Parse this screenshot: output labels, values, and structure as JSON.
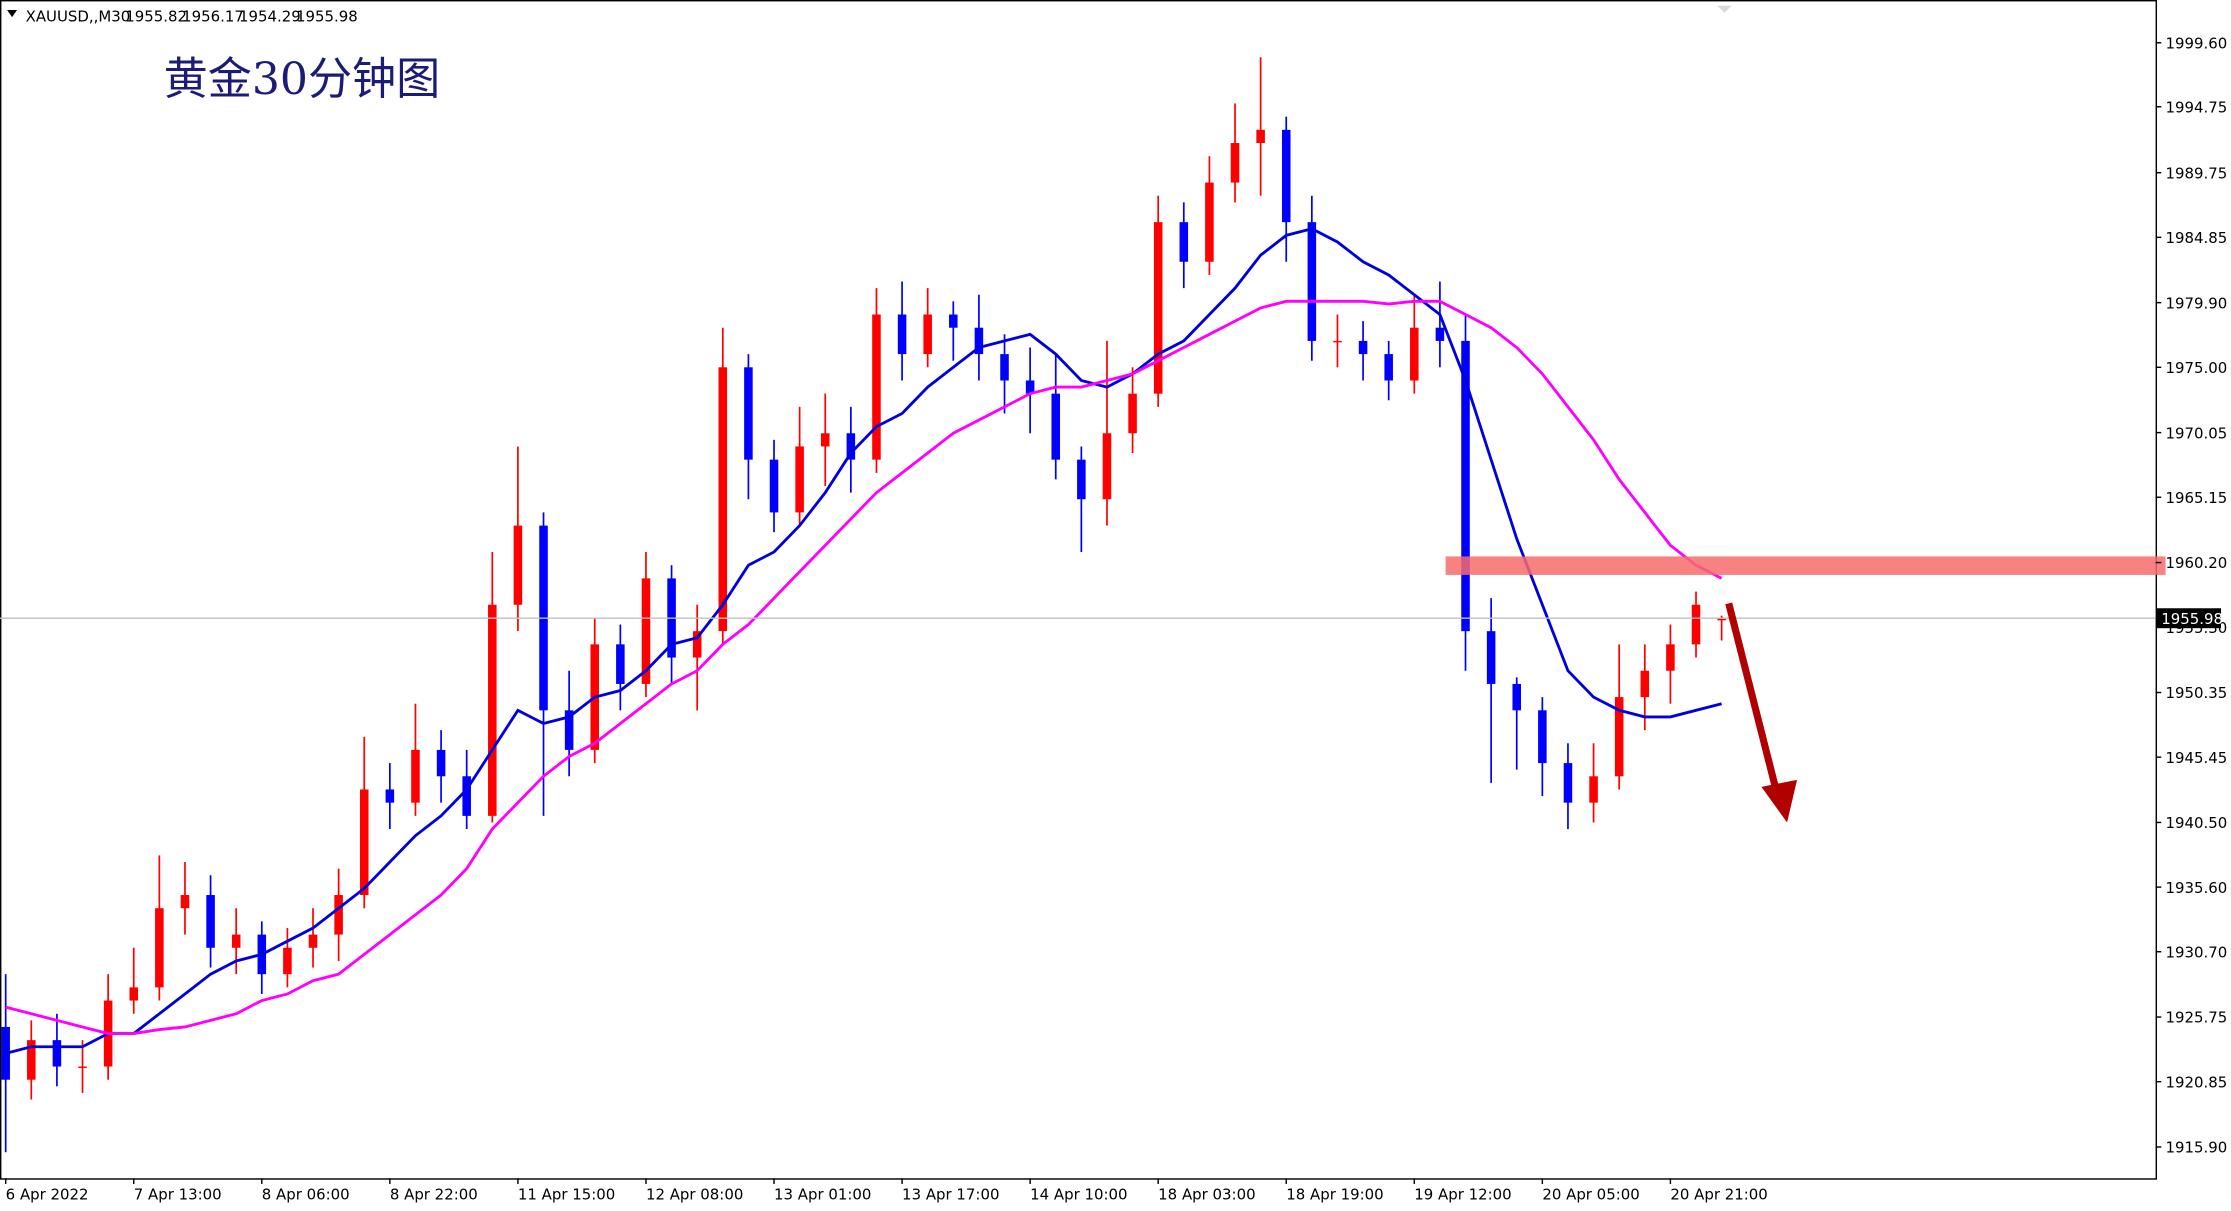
{
  "chart_data": {
    "type": "candlestick",
    "symbol": "XAUUSD,,M30",
    "title": "黄金30分钟图",
    "categories": [
      "6 Apr 2022",
      null,
      null,
      null,
      null,
      "7 Apr 13:00",
      null,
      null,
      null,
      null,
      "8 Apr 06:00",
      null,
      null,
      null,
      null,
      "8 Apr 22:00",
      null,
      null,
      null,
      null,
      "11 Apr 15:00",
      null,
      null,
      null,
      null,
      "12 Apr 08:00",
      null,
      null,
      null,
      null,
      "13 Apr 01:00",
      null,
      null,
      null,
      null,
      "13 Apr 17:00",
      null,
      null,
      null,
      null,
      "14 Apr 10:00",
      null,
      null,
      null,
      null,
      "18 Apr 03:00",
      null,
      null,
      null,
      null,
      "18 Apr 19:00",
      null,
      null,
      null,
      null,
      "19 Apr 12:00",
      null,
      null,
      null,
      null,
      "20 Apr 05:00",
      null,
      null,
      null,
      null,
      "20 Apr 21:00",
      null,
      null
    ],
    "open": [
      1925,
      1921,
      1924,
      1922,
      1922,
      1927,
      1928,
      1934,
      1935,
      1931,
      1932,
      1929,
      1931,
      1932,
      1935,
      1943,
      1942,
      1946,
      1944,
      1941,
      1957,
      1963,
      1949,
      1946,
      1954,
      1951,
      1959,
      1953,
      1955,
      1975,
      1968,
      1964,
      1969,
      1970,
      1968,
      1979,
      1976,
      1979,
      1978,
      1976,
      1974,
      1973,
      1968,
      1965,
      1970,
      1973,
      1986,
      1983,
      1989,
      1992,
      1993,
      1986,
      1977,
      1977,
      1976,
      1974,
      1978,
      1977,
      1955,
      1951,
      1949,
      1945,
      1942,
      1944,
      1950,
      1952,
      1954,
      1955.82
    ],
    "high": [
      1929,
      1925.5,
      1926,
      1924,
      1929,
      1931,
      1938,
      1937.5,
      1936.5,
      1934,
      1933,
      1932.5,
      1934,
      1937,
      1947,
      1945,
      1949.5,
      1947.5,
      1946,
      1961,
      1969,
      1964,
      1952,
      1956,
      1955.5,
      1961,
      1960,
      1957,
      1978,
      1976,
      1969.5,
      1972,
      1973,
      1972,
      1981,
      1981.5,
      1981,
      1980,
      1980.5,
      1977.5,
      1976.5,
      1976,
      1969,
      1977,
      1975,
      1988,
      1987.5,
      1991,
      1995,
      1998.5,
      1994,
      1988,
      1979,
      1978.5,
      1977,
      1980.5,
      1981.5,
      1979,
      1957.5,
      1951.5,
      1950,
      1946.5,
      1946.5,
      1954,
      1954,
      1955.5,
      1958,
      1956.17
    ],
    "low": [
      1915.5,
      1919.5,
      1920.5,
      1920,
      1921,
      1926,
      1927,
      1932,
      1929.5,
      1929,
      1927.5,
      1928,
      1929.5,
      1930,
      1934,
      1940,
      1941,
      1942,
      1940,
      1940.5,
      1955,
      1941,
      1944,
      1945,
      1949,
      1950,
      1951,
      1949,
      1954,
      1965,
      1962.5,
      1963,
      1966,
      1965.5,
      1967,
      1974,
      1975,
      1975.5,
      1974,
      1971.5,
      1970,
      1966.5,
      1961,
      1963,
      1968.5,
      1972,
      1981,
      1982,
      1987.5,
      1988,
      1983,
      1975.5,
      1975,
      1974,
      1972.5,
      1973,
      1975,
      1952,
      1943.5,
      1944.5,
      1942.5,
      1940,
      1940.5,
      1943,
      1947.5,
      1949.5,
      1953,
      1954.29
    ],
    "close": [
      1921,
      1924,
      1922,
      1922,
      1927,
      1928,
      1934,
      1935,
      1931,
      1932,
      1929,
      1931,
      1932,
      1935,
      1943,
      1942,
      1946,
      1944,
      1941,
      1957,
      1963,
      1949,
      1946,
      1954,
      1951,
      1959,
      1953,
      1955,
      1975,
      1968,
      1964,
      1969,
      1970,
      1968,
      1979,
      1976,
      1979,
      1978,
      1976,
      1974,
      1973,
      1968,
      1965,
      1970,
      1973,
      1986,
      1983,
      1989,
      1992,
      1993,
      1986,
      1977,
      1977,
      1976,
      1974,
      1978,
      1977,
      1955,
      1951,
      1949,
      1945,
      1942,
      1944,
      1950,
      1952,
      1954,
      1957,
      1955.98
    ],
    "up_color": "#ff0000",
    "down_color": "#0000ff",
    "series": [
      {
        "color": "#0000dd",
        "values": [
          1923,
          1923.5,
          1923.5,
          1923.5,
          1924.5,
          1924.5,
          1926,
          1927.5,
          1929,
          1930,
          1930.5,
          1931.5,
          1932.5,
          1934,
          1935.5,
          1937.5,
          1939.5,
          1941,
          1943,
          1946,
          1949,
          1948,
          1948.5,
          1950,
          1950.5,
          1952,
          1954,
          1954.5,
          1957,
          1960,
          1961,
          1963,
          1965.5,
          1968.5,
          1970.5,
          1971.5,
          1973.5,
          1975,
          1976.5,
          1977,
          1977.5,
          1976,
          1974,
          1973.5,
          1974.5,
          1976,
          1977,
          1979,
          1981,
          1983.5,
          1985,
          1985.5,
          1984.5,
          1983,
          1982,
          1980.5,
          1979,
          1974,
          1968,
          1962,
          1957,
          1952,
          1950,
          1949,
          1948.5,
          1948.5,
          1949,
          1949.5
        ]
      },
      {
        "color": "#ff00ff",
        "values": [
          1926.5,
          1926,
          1925.5,
          1925,
          1924.5,
          1924.5,
          1924.8,
          1925,
          1925.5,
          1926,
          1927,
          1927.5,
          1928.5,
          1929,
          1930.5,
          1932,
          1933.5,
          1935,
          1937,
          1940,
          1942,
          1944,
          1945.5,
          1946.5,
          1948,
          1949.5,
          1951,
          1952,
          1954,
          1955.5,
          1957.5,
          1959.5,
          1961.5,
          1963.5,
          1965.5,
          1967,
          1968.5,
          1970,
          1971,
          1972,
          1973,
          1973.5,
          1973.5,
          1974,
          1974.5,
          1975.5,
          1976.5,
          1977.5,
          1978.5,
          1979.5,
          1980,
          1980,
          1980,
          1980,
          1979.8,
          1980,
          1980,
          1979,
          1978,
          1976.5,
          1974.5,
          1972,
          1969.5,
          1966.5,
          1964,
          1961.5,
          1960,
          1959
        ]
      }
    ],
    "ylim": [
      1913.53,
      2002.84
    ],
    "yticks": [
      {
        "value": 1999.6,
        "label": "1999.60"
      },
      1994.75,
      1989.75,
      1984.85,
      {
        "value": 1979.9,
        "label": "1979.90"
      },
      {
        "value": 1975,
        "label": "1975.00"
      },
      1970.05,
      1965.15,
      {
        "value": 1960.2,
        "label": "1960.20"
      },
      {
        "value": 1955.3,
        "label": "1955.30"
      },
      1950.35,
      1945.45,
      {
        "value": 1940.5,
        "label": "1940.50"
      },
      {
        "value": 1935.6,
        "label": "1935.60"
      },
      {
        "value": 1930.7,
        "label": "1930.70"
      },
      1925.75,
      1920.85,
      {
        "value": 1915.9,
        "label": "1915.90"
      }
    ]
  }
}
